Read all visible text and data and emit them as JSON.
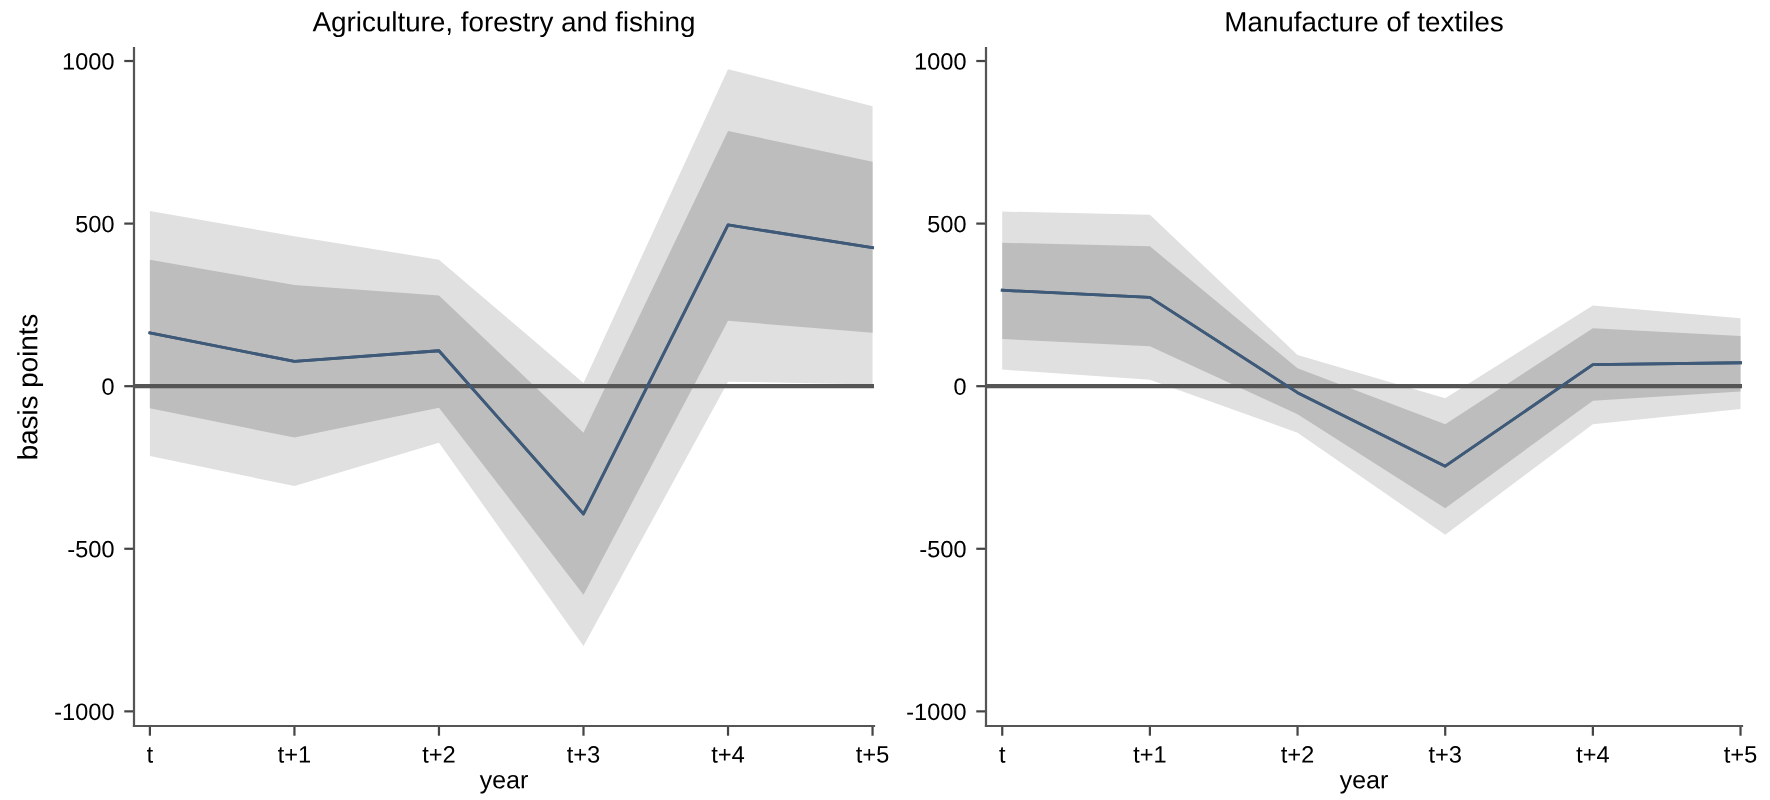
{
  "chart_data": [
    {
      "type": "line",
      "title": "Agriculture, forestry and fishing",
      "xlabel": "year",
      "ylabel": "basis points",
      "categories": [
        "t",
        "t+1",
        "t+2",
        "t+3",
        "t+4",
        "t+5"
      ],
      "ylim": [
        -1045,
        1040
      ],
      "yticks": [
        -1000,
        -500,
        0,
        500,
        1000
      ],
      "grid": false,
      "series": [
        {
          "color": "#3e5a78",
          "values": [
            164,
            76,
            109,
            -393,
            496,
            426
          ],
          "lower": [
            -215,
            -307,
            -174,
            -799,
            14,
            5
          ],
          "upper": [
            539,
            461,
            389,
            10,
            975,
            861
          ]
        },
        {
          "color": "#3e5a78",
          "values": [
            164,
            76,
            109,
            -393,
            496,
            426
          ],
          "lower": [
            -68,
            -158,
            -66,
            -641,
            201,
            164
          ],
          "upper": [
            389,
            311,
            279,
            -143,
            785,
            690
          ]
        }
      ],
      "ref_lines": [
        {
          "axis": "y",
          "value": 0,
          "color": "#555555"
        }
      ]
    },
    {
      "type": "line",
      "title": "Manufacture of textiles",
      "xlabel": "year",
      "categories": [
        "t",
        "t+1",
        "t+2",
        "t+3",
        "t+4",
        "t+5"
      ],
      "ylim": [
        -1045,
        1040
      ],
      "yticks": [
        -1000,
        -500,
        0,
        500,
        1000
      ],
      "grid": false,
      "series": [
        {
          "color": "#3e5a78",
          "values": [
            295,
            273,
            -20,
            -246,
            66,
            72
          ],
          "lower": [
            51,
            20,
            -143,
            -457,
            -117,
            -70
          ],
          "upper": [
            537,
            527,
            96,
            -37,
            248,
            209
          ]
        },
        {
          "color": "#3e5a78",
          "values": [
            295,
            273,
            -20,
            -246,
            66,
            72
          ],
          "lower": [
            145,
            123,
            -86,
            -375,
            -45,
            -16
          ],
          "upper": [
            441,
            430,
            55,
            -117,
            178,
            154
          ]
        }
      ],
      "ref_lines": [
        {
          "axis": "y",
          "value": 0,
          "color": "#555555"
        }
      ]
    }
  ]
}
